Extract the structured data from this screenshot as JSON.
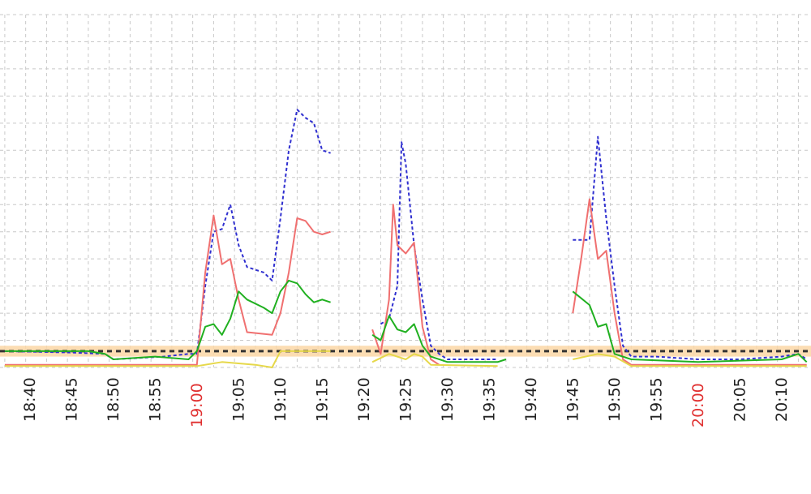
{
  "colors": {
    "grid": "#c8c8c8",
    "normal_label": "#222222",
    "highlight_label": "#e03030",
    "threshold_band": "#fbd7a6",
    "threshold_line": "#333333"
  },
  "chart_data": {
    "type": "line",
    "title": "",
    "xlabel": "",
    "ylabel": "",
    "grid": true,
    "legend": "none",
    "x_range": [
      "18:37",
      "20:13"
    ],
    "y_range": [
      0,
      13
    ],
    "threshold": {
      "value": 0.6,
      "band": [
        0.4,
        0.8
      ]
    },
    "x_ticks": [
      {
        "label": "18:40",
        "highlight": false
      },
      {
        "label": "18:45",
        "highlight": false
      },
      {
        "label": "18:50",
        "highlight": false
      },
      {
        "label": "18:55",
        "highlight": false
      },
      {
        "label": "19:00",
        "highlight": true
      },
      {
        "label": "19:05",
        "highlight": false
      },
      {
        "label": "19:10",
        "highlight": false
      },
      {
        "label": "19:15",
        "highlight": false
      },
      {
        "label": "19:20",
        "highlight": false
      },
      {
        "label": "19:25",
        "highlight": false
      },
      {
        "label": "19:30",
        "highlight": false
      },
      {
        "label": "19:35",
        "highlight": false
      },
      {
        "label": "19:40",
        "highlight": false
      },
      {
        "label": "19:45",
        "highlight": false
      },
      {
        "label": "19:50",
        "highlight": false
      },
      {
        "label": "19:55",
        "highlight": false
      },
      {
        "label": "20:00",
        "highlight": true
      },
      {
        "label": "20:05",
        "highlight": false
      },
      {
        "label": "20:10",
        "highlight": false
      }
    ],
    "series": [
      {
        "color": "#3030d0",
        "dash": true,
        "segments": [
          [
            [
              "18:37",
              0.6
            ],
            [
              "18:45",
              0.55
            ],
            [
              "18:49",
              0.5
            ],
            [
              "18:50",
              0.3
            ],
            [
              "18:56",
              0.4
            ],
            [
              "18:59",
              0.5
            ],
            [
              "19:00",
              0.5
            ],
            [
              "19:01",
              3.0
            ],
            [
              "19:02",
              5.0
            ],
            [
              "19:03",
              5.1
            ],
            [
              "19:04",
              6.0
            ],
            [
              "19:05",
              4.5
            ],
            [
              "19:06",
              3.7
            ],
            [
              "19:08",
              3.5
            ],
            [
              "19:09",
              3.2
            ],
            [
              "19:10",
              5.5
            ],
            [
              "19:11",
              8.0
            ],
            [
              "19:12",
              9.5
            ],
            [
              "19:13",
              9.2
            ],
            [
              "19:14",
              9.0
            ],
            [
              "19:15",
              8.0
            ],
            [
              "19:16",
              7.9
            ]
          ],
          [
            [
              "19:22",
              1.6
            ],
            [
              "19:23",
              1.8
            ],
            [
              "19:24",
              3.0
            ],
            [
              "19:24.5",
              8.3
            ],
            [
              "19:25",
              7.5
            ],
            [
              "19:26",
              4.5
            ],
            [
              "19:27",
              2.5
            ],
            [
              "19:28",
              0.8
            ],
            [
              "19:29",
              0.5
            ],
            [
              "19:30",
              0.3
            ],
            [
              "19:36",
              0.3
            ]
          ],
          [
            [
              "19:45",
              4.7
            ],
            [
              "19:47",
              4.7
            ],
            [
              "19:48",
              8.5
            ],
            [
              "19:49",
              5.5
            ],
            [
              "19:50",
              3.0
            ],
            [
              "19:51",
              0.8
            ],
            [
              "19:52",
              0.4
            ],
            [
              "19:55",
              0.4
            ],
            [
              "20:00",
              0.3
            ],
            [
              "20:05",
              0.3
            ],
            [
              "20:10",
              0.4
            ],
            [
              "20:12",
              0.5
            ],
            [
              "20:13",
              0.3
            ]
          ]
        ]
      },
      {
        "color": "#f07070",
        "dash": false,
        "segments": [
          [
            [
              "18:37",
              0.1
            ],
            [
              "18:59",
              0.1
            ],
            [
              "19:00",
              0.1
            ],
            [
              "19:01",
              3.5
            ],
            [
              "19:02",
              5.6
            ],
            [
              "19:03",
              3.8
            ],
            [
              "19:04",
              4.0
            ],
            [
              "19:05",
              2.5
            ],
            [
              "19:06",
              1.3
            ],
            [
              "19:09",
              1.2
            ],
            [
              "19:10",
              2.0
            ],
            [
              "19:11",
              3.5
            ],
            [
              "19:12",
              5.5
            ],
            [
              "19:13",
              5.4
            ],
            [
              "19:14",
              5.0
            ],
            [
              "19:15",
              4.9
            ],
            [
              "19:16",
              5.0
            ]
          ],
          [
            [
              "19:21",
              1.4
            ],
            [
              "19:22",
              0.5
            ],
            [
              "19:23",
              2.5
            ],
            [
              "19:23.5",
              6.0
            ],
            [
              "19:24",
              4.5
            ],
            [
              "19:25",
              4.2
            ],
            [
              "19:26",
              4.6
            ],
            [
              "19:27",
              1.5
            ],
            [
              "19:28",
              0.3
            ],
            [
              "19:29",
              0.1
            ]
          ],
          [
            [
              "19:45",
              2.0
            ],
            [
              "19:46",
              4.0
            ],
            [
              "19:47",
              6.2
            ],
            [
              "19:48",
              4.0
            ],
            [
              "19:49",
              4.3
            ],
            [
              "19:50",
              2.0
            ],
            [
              "19:51",
              0.3
            ],
            [
              "19:52",
              0.1
            ],
            [
              "20:13",
              0.1
            ]
          ]
        ]
      },
      {
        "color": "#20b020",
        "dash": false,
        "segments": [
          [
            [
              "18:37",
              0.6
            ],
            [
              "18:47",
              0.6
            ],
            [
              "18:49",
              0.5
            ],
            [
              "18:50",
              0.3
            ],
            [
              "18:55",
              0.4
            ],
            [
              "18:59",
              0.3
            ],
            [
              "19:00",
              0.6
            ],
            [
              "19:01",
              1.5
            ],
            [
              "19:02",
              1.6
            ],
            [
              "19:03",
              1.2
            ],
            [
              "19:04",
              1.8
            ],
            [
              "19:05",
              2.8
            ],
            [
              "19:06",
              2.5
            ],
            [
              "19:08",
              2.2
            ],
            [
              "19:09",
              2.0
            ],
            [
              "19:10",
              2.8
            ],
            [
              "19:11",
              3.2
            ],
            [
              "19:12",
              3.1
            ],
            [
              "19:13",
              2.7
            ],
            [
              "19:14",
              2.4
            ],
            [
              "19:15",
              2.5
            ],
            [
              "19:16",
              2.4
            ]
          ],
          [
            [
              "19:21",
              1.2
            ],
            [
              "19:22",
              1.0
            ],
            [
              "19:23",
              1.9
            ],
            [
              "19:24",
              1.4
            ],
            [
              "19:25",
              1.3
            ],
            [
              "19:26",
              1.6
            ],
            [
              "19:27",
              0.8
            ],
            [
              "19:28",
              0.4
            ],
            [
              "19:30",
              0.2
            ],
            [
              "19:36",
              0.2
            ],
            [
              "19:37",
              0.3
            ]
          ],
          [
            [
              "19:45",
              2.8
            ],
            [
              "19:47",
              2.3
            ],
            [
              "19:48",
              1.5
            ],
            [
              "19:49",
              1.6
            ],
            [
              "19:50",
              0.5
            ],
            [
              "19:52",
              0.3
            ],
            [
              "20:00",
              0.2
            ],
            [
              "20:10",
              0.3
            ],
            [
              "20:12",
              0.5
            ],
            [
              "20:13",
              0.2
            ]
          ]
        ]
      },
      {
        "color": "#e6d84a",
        "dash": false,
        "segments": [
          [
            [
              "18:37",
              0.05
            ],
            [
              "19:00",
              0.05
            ],
            [
              "19:03",
              0.2
            ],
            [
              "19:07",
              0.1
            ],
            [
              "19:09",
              0.0
            ],
            [
              "19:10",
              0.6
            ],
            [
              "19:11",
              0.6
            ],
            [
              "19:16",
              0.6
            ]
          ],
          [
            [
              "19:21",
              0.2
            ],
            [
              "19:23",
              0.5
            ],
            [
              "19:25",
              0.3
            ],
            [
              "19:26",
              0.5
            ],
            [
              "19:27",
              0.4
            ],
            [
              "19:28",
              0.1
            ],
            [
              "19:36",
              0.05
            ]
          ],
          [
            [
              "19:45",
              0.3
            ],
            [
              "19:48",
              0.5
            ],
            [
              "19:50",
              0.4
            ],
            [
              "19:52",
              0.05
            ],
            [
              "20:13",
              0.05
            ]
          ]
        ]
      }
    ]
  }
}
